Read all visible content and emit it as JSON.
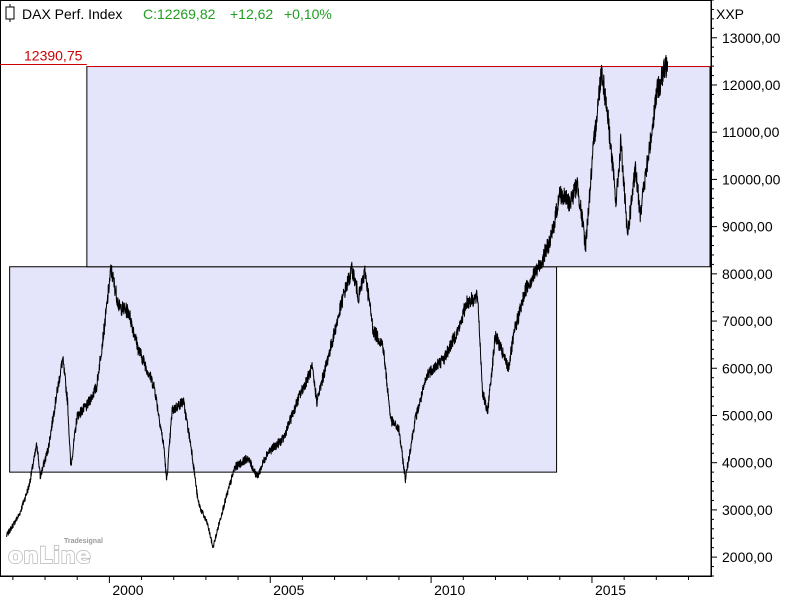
{
  "header": {
    "title": "DAX Perf. Index",
    "close_label": "C:12269,82",
    "change_label": "+12,62",
    "change_pct_label": "+0,10%",
    "close_value": 12269.82,
    "change_value": 12.62,
    "change_pct_value": 0.1
  },
  "axis": {
    "ticker": "XXP"
  },
  "watermark": {
    "brand_small": "Tradesignal",
    "brand_large": "onLine"
  },
  "colors": {
    "price_line": "#000000",
    "box_fill": "#e4e4fa",
    "box_stroke": "#000000",
    "reference_line": "#cc0000",
    "header_green": "#1f9e1f",
    "axis": "#000000"
  },
  "chart_data": {
    "type": "line",
    "series": [
      {
        "values": [
          [
            1996.8,
            2450
          ],
          [
            1997.2,
            2900
          ],
          [
            1997.5,
            3500
          ],
          [
            1997.75,
            4400
          ],
          [
            1997.85,
            3700
          ],
          [
            1998.1,
            4300
          ],
          [
            1998.35,
            5400
          ],
          [
            1998.55,
            6200
          ],
          [
            1998.7,
            5300
          ],
          [
            1998.8,
            3900
          ],
          [
            1999.0,
            5000
          ],
          [
            1999.3,
            5200
          ],
          [
            1999.6,
            5600
          ],
          [
            1999.85,
            6900
          ],
          [
            2000.05,
            8100
          ],
          [
            2000.3,
            7300
          ],
          [
            2000.6,
            7200
          ],
          [
            2000.9,
            6400
          ],
          [
            2001.1,
            6100
          ],
          [
            2001.4,
            5600
          ],
          [
            2001.7,
            4300
          ],
          [
            2001.78,
            3600
          ],
          [
            2001.95,
            5100
          ],
          [
            2002.3,
            5300
          ],
          [
            2002.55,
            4300
          ],
          [
            2002.75,
            3200
          ],
          [
            2002.85,
            3000
          ],
          [
            2003.05,
            2700
          ],
          [
            2003.22,
            2200
          ],
          [
            2003.5,
            2950
          ],
          [
            2003.9,
            3900
          ],
          [
            2004.3,
            4100
          ],
          [
            2004.6,
            3700
          ],
          [
            2004.9,
            4200
          ],
          [
            2005.4,
            4500
          ],
          [
            2005.9,
            5400
          ],
          [
            2006.3,
            6000
          ],
          [
            2006.45,
            5300
          ],
          [
            2006.9,
            6500
          ],
          [
            2007.3,
            7600
          ],
          [
            2007.55,
            8100
          ],
          [
            2007.75,
            7500
          ],
          [
            2007.95,
            8050
          ],
          [
            2008.2,
            6800
          ],
          [
            2008.5,
            6500
          ],
          [
            2008.75,
            4900
          ],
          [
            2009.0,
            4700
          ],
          [
            2009.2,
            3650
          ],
          [
            2009.5,
            4900
          ],
          [
            2009.9,
            5900
          ],
          [
            2010.4,
            6200
          ],
          [
            2010.9,
            6900
          ],
          [
            2011.1,
            7400
          ],
          [
            2011.45,
            7500
          ],
          [
            2011.6,
            5500
          ],
          [
            2011.75,
            5050
          ],
          [
            2012.0,
            6700
          ],
          [
            2012.4,
            6000
          ],
          [
            2012.6,
            6800
          ],
          [
            2012.95,
            7700
          ],
          [
            2013.4,
            8200
          ],
          [
            2013.75,
            8800
          ],
          [
            2014.0,
            9700
          ],
          [
            2014.3,
            9500
          ],
          [
            2014.55,
            9900
          ],
          [
            2014.8,
            8600
          ],
          [
            2015.05,
            10700
          ],
          [
            2015.3,
            12350
          ],
          [
            2015.5,
            11300
          ],
          [
            2015.75,
            9500
          ],
          [
            2015.9,
            10800
          ],
          [
            2016.1,
            8800
          ],
          [
            2016.35,
            10200
          ],
          [
            2016.5,
            9300
          ],
          [
            2016.8,
            10700
          ],
          [
            2017.0,
            11800
          ],
          [
            2017.25,
            12300
          ],
          [
            2017.35,
            12500
          ]
        ]
      }
    ],
    "y_ticks": [
      "2000,00",
      "3000,00",
      "4000,00",
      "5000,00",
      "6000,00",
      "7000,00",
      "8000,00",
      "9000,00",
      "10000,00",
      "11000,00",
      "12000,00",
      "13000,00"
    ],
    "y_tick_values": [
      2000,
      3000,
      4000,
      5000,
      6000,
      7000,
      8000,
      9000,
      10000,
      11000,
      12000,
      13000
    ],
    "x_ticks": [
      "2000",
      "2005",
      "2010",
      "2015"
    ],
    "x_tick_values": [
      2000,
      2005,
      2010,
      2015
    ],
    "ylim": [
      1600,
      13800
    ],
    "xlim": [
      1996.6,
      2018.7
    ],
    "reference_line": {
      "value": 12390.75,
      "label": "12390,75"
    },
    "ranges": [
      {
        "x_start": 1996.9,
        "x_end": 2013.9,
        "y_low": 3800,
        "y_high": 8150
      },
      {
        "x_start": 1999.3,
        "x_end": 2018.7,
        "y_low": 8150,
        "y_high": 12390.75
      }
    ],
    "grid": false,
    "axis_position": "right",
    "legend": "none"
  }
}
